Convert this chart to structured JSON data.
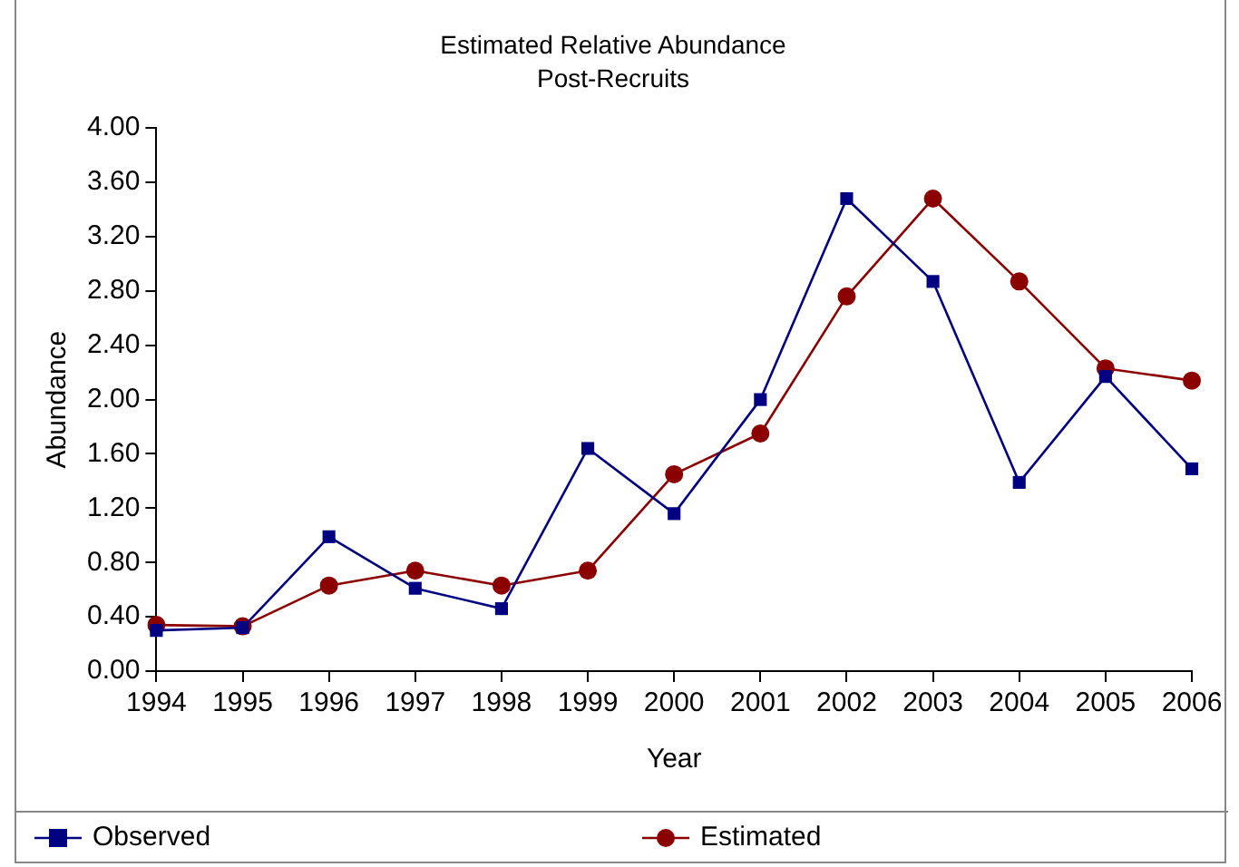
{
  "chart_data": {
    "type": "line",
    "title": "Estimated Relative Abundance",
    "subtitle": "Post-Recruits",
    "xlabel": "Year",
    "ylabel": "Abundance",
    "categories": [
      "1994",
      "1995",
      "1996",
      "1997",
      "1998",
      "1999",
      "2000",
      "2001",
      "2002",
      "2003",
      "2004",
      "2005",
      "2006"
    ],
    "series": [
      {
        "name": "Observed",
        "color": "#000080",
        "marker": "square",
        "values": [
          0.3,
          0.32,
          0.99,
          0.61,
          0.46,
          1.64,
          1.16,
          2.0,
          3.48,
          2.87,
          1.39,
          2.17,
          1.49
        ]
      },
      {
        "name": "Estimated",
        "color": "#8b0000",
        "marker": "circle",
        "values": [
          0.34,
          0.33,
          0.63,
          0.74,
          0.63,
          0.74,
          1.45,
          1.75,
          2.76,
          3.48,
          2.87,
          2.23,
          2.14
        ]
      }
    ],
    "ylim": [
      0,
      4
    ],
    "yticks": [
      {
        "value": 0,
        "label": "0.00"
      },
      {
        "value": 0.4,
        "label": "0.40"
      },
      {
        "value": 0.8,
        "label": "0.80"
      },
      {
        "value": 1.2,
        "label": "1.20"
      },
      {
        "value": 1.6,
        "label": "1.60"
      },
      {
        "value": 2,
        "label": "2.00"
      },
      {
        "value": 2.4,
        "label": "2.40"
      },
      {
        "value": 2.8,
        "label": "2.80"
      },
      {
        "value": 3.2,
        "label": "3.20"
      },
      {
        "value": 3.6,
        "label": "3.60"
      },
      {
        "value": 4,
        "label": "4.00"
      }
    ],
    "grid": false,
    "legend": "bottom"
  }
}
